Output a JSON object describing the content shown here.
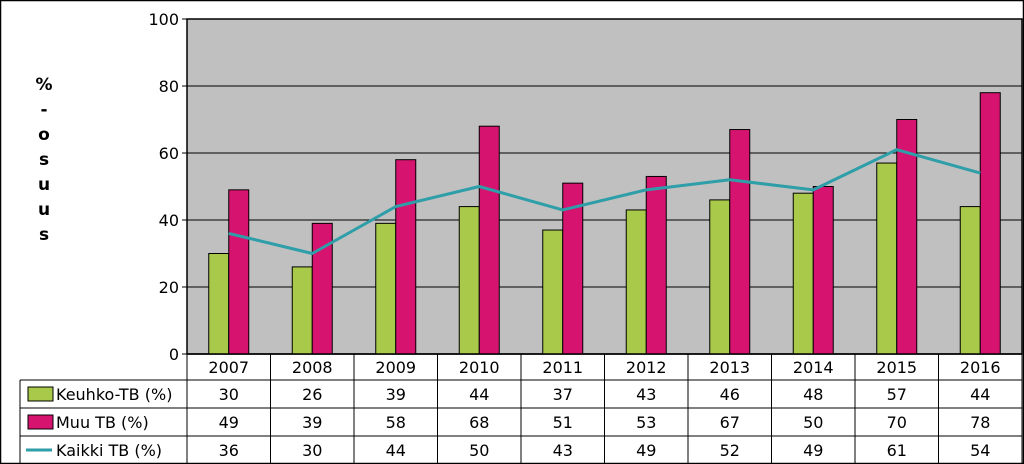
{
  "chart_data": {
    "type": "bar",
    "title": "",
    "ylabel_lines": [
      "%",
      "-",
      "o",
      "s",
      "u",
      "u",
      "s"
    ],
    "ylim": [
      0,
      100
    ],
    "yticks": [
      0,
      20,
      40,
      60,
      80,
      100
    ],
    "grid": "horizontal",
    "plot_background": "#c0c0c0",
    "categories": [
      "2007",
      "2008",
      "2009",
      "2010",
      "2011",
      "2012",
      "2013",
      "2014",
      "2015",
      "2016"
    ],
    "series": [
      {
        "name": "Keuhko-TB (%)",
        "kind": "bar",
        "color": "#a9c94a",
        "values": [
          30,
          26,
          39,
          44,
          37,
          43,
          46,
          48,
          57,
          44
        ]
      },
      {
        "name": "Muu TB (%)",
        "kind": "bar",
        "color": "#d6136f",
        "values": [
          49,
          39,
          58,
          68,
          51,
          53,
          67,
          50,
          70,
          78
        ]
      },
      {
        "name": "Kaikki TB (%)",
        "kind": "line",
        "color": "#2e9ea8",
        "values": [
          36,
          30,
          44,
          50,
          43,
          49,
          52,
          49,
          61,
          54
        ]
      }
    ],
    "legend": "data-table"
  }
}
